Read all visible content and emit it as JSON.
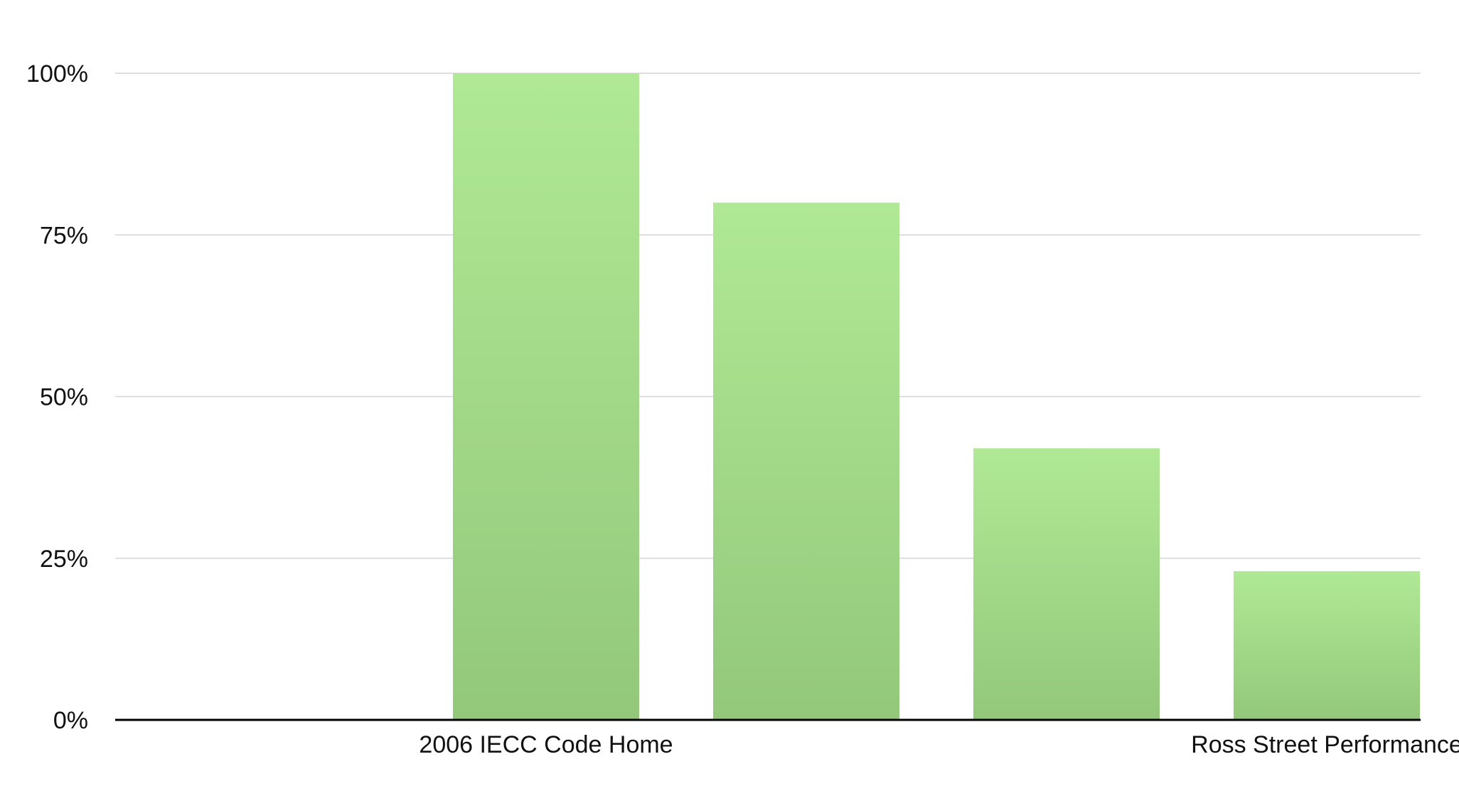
{
  "chart_data": {
    "type": "bar",
    "categories": [
      "",
      "2006 IECC Code Home",
      "",
      "",
      "Ross Street Performance"
    ],
    "category_labels_shown": [
      "",
      "2006 IECC Code Home",
      "",
      "",
      "Ross Street Performance"
    ],
    "values": [
      null,
      100,
      80,
      42,
      23
    ],
    "yticks": [
      "0%",
      "25%",
      "50%",
      "75%",
      "100%"
    ],
    "ytick_values": [
      0,
      25,
      50,
      75,
      100
    ],
    "ylim": [
      0,
      100
    ],
    "grid": true,
    "legend": "none",
    "colors": {
      "bar_top": "#b0e995",
      "bar_bottom": "#93c87b",
      "gridline": "#d4d4d4",
      "axis": "#000000"
    }
  }
}
